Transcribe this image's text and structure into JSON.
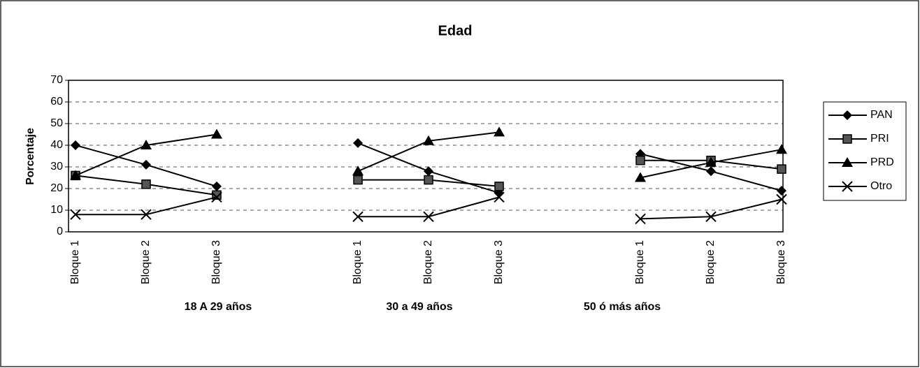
{
  "chart_data": {
    "type": "line",
    "title": "Edad",
    "y_label": "Porcentaje",
    "categories": [
      "Bloque 1",
      "Bloque 2",
      "Bloque 3",
      null,
      "Bloque 1",
      "Bloque 2",
      "Bloque 3",
      null,
      "Bloque 1",
      "Bloque 2",
      "Bloque 3"
    ],
    "group_labels": [
      "18 A 29 años",
      "30 a 49 años",
      "50 ó más años"
    ],
    "series": [
      {
        "name": "PAN",
        "color": "#000000",
        "marker": "diamond",
        "values": [
          40,
          31,
          21,
          null,
          41,
          28,
          18,
          null,
          36,
          28,
          19
        ]
      },
      {
        "name": "PRI",
        "color": "#000000",
        "marker": "square",
        "values": [
          26,
          22,
          17,
          null,
          24,
          24,
          21,
          null,
          33,
          33,
          29
        ]
      },
      {
        "name": "PRD",
        "color": "#000000",
        "marker": "triangle",
        "values": [
          26,
          40,
          45,
          null,
          28,
          42,
          46,
          null,
          25,
          32,
          38
        ]
      },
      {
        "name": "Otro",
        "color": "#000000",
        "marker": "x",
        "values": [
          8,
          8,
          16,
          null,
          7,
          7,
          16,
          null,
          6,
          7,
          15
        ]
      }
    ],
    "ylim": [
      0,
      70
    ],
    "yticks": [
      0,
      10,
      20,
      30,
      40,
      50,
      60,
      70
    ],
    "grid": true,
    "legend": "right"
  }
}
